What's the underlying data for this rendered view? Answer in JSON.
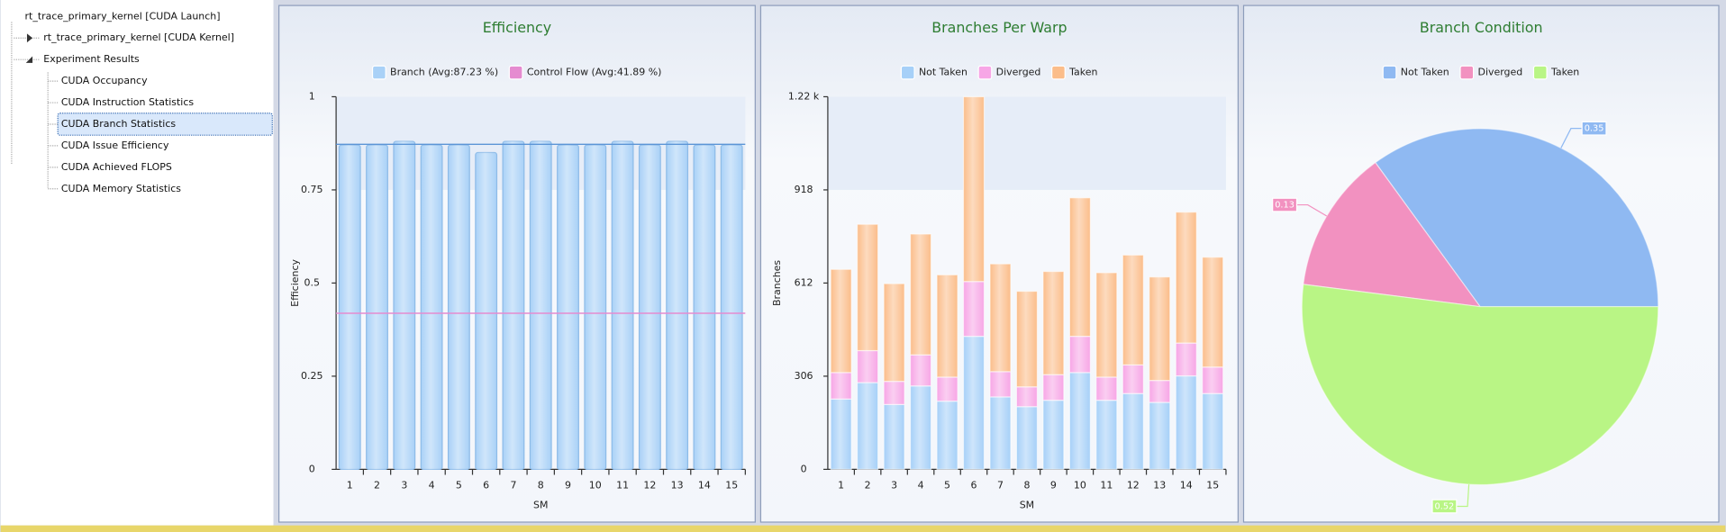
{
  "tree": {
    "items": [
      {
        "label": "rt_trace_primary_kernel [CUDA Launch]"
      },
      {
        "label": "rt_trace_primary_kernel [CUDA Kernel]"
      },
      {
        "label": "Experiment Results",
        "children": [
          "CUDA Occupancy",
          "CUDA Instruction Statistics",
          "CUDA Branch Statistics",
          "CUDA Issue Efficiency",
          "CUDA Achieved FLOPS",
          "CUDA Memory Statistics"
        ],
        "selected_index": 2
      }
    ]
  },
  "chart_data": [
    {
      "type": "bar",
      "title": "Efficiency",
      "x_label": "SM",
      "y_label": "Efficiency",
      "categories": [
        "1",
        "2",
        "3",
        "4",
        "5",
        "6",
        "7",
        "8",
        "9",
        "10",
        "11",
        "12",
        "13",
        "14",
        "15"
      ],
      "series": [
        {
          "name": "Branch (Avg:87.23 %)",
          "color": "#a9d1f7",
          "values": [
            0.87,
            0.87,
            0.88,
            0.87,
            0.87,
            0.85,
            0.88,
            0.88,
            0.87,
            0.87,
            0.88,
            0.87,
            0.88,
            0.87,
            0.87
          ],
          "average": 0.8723
        },
        {
          "name": "Control Flow (Avg:41.89 %)",
          "color": "#e58bd0",
          "average": 0.4189
        }
      ],
      "ylim": [
        0,
        1
      ],
      "yticks": [
        0,
        0.25,
        0.5,
        0.75,
        1
      ]
    },
    {
      "type": "stacked_bar",
      "title": "Branches Per Warp",
      "x_label": "SM",
      "y_label": "Branches",
      "categories": [
        "1",
        "2",
        "3",
        "4",
        "5",
        "6",
        "7",
        "8",
        "9",
        "10",
        "11",
        "12",
        "13",
        "14",
        "15"
      ],
      "series": [
        {
          "name": "Not Taken",
          "color": "#a6d0f8",
          "values": [
            231,
            285,
            213,
            274,
            224,
            437,
            238,
            206,
            227,
            318,
            227,
            249,
            220,
            307,
            249
          ]
        },
        {
          "name": "Diverged",
          "color": "#f7a6e6",
          "values": [
            87,
            105,
            76,
            102,
            79,
            180,
            83,
            65,
            84,
            119,
            76,
            94,
            72,
            108,
            87
          ]
        },
        {
          "name": "Taken",
          "color": "#fbbd8a",
          "values": [
            339,
            415,
            321,
            397,
            336,
            607,
            354,
            314,
            339,
            455,
            343,
            361,
            340,
            430,
            361
          ]
        }
      ],
      "ylim": [
        0,
        1224
      ],
      "yticks": [
        0,
        306,
        612,
        918,
        {
          "value": 1224,
          "label": "1.22 k"
        }
      ]
    },
    {
      "type": "pie",
      "title": "Branch Condition",
      "categories": [
        "Not Taken",
        "Diverged",
        "Taken"
      ],
      "values": [
        0.35,
        0.13,
        0.52
      ],
      "colors": [
        "#8fb9f2",
        "#f291c0",
        "#b9f585"
      ]
    }
  ]
}
